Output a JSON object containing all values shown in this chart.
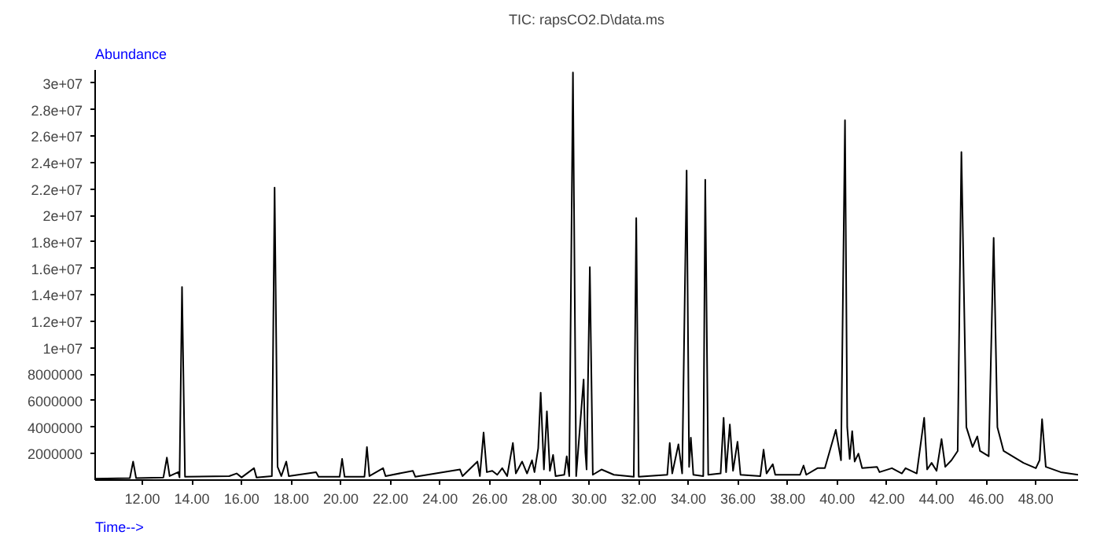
{
  "chart_data": {
    "type": "line",
    "title": "TIC: rapsCO2.D\\data.ms",
    "ylabel": "Abundance",
    "xlabel": "Time-->",
    "xlim": [
      10.1,
      49.7
    ],
    "ylim": [
      0,
      31000000
    ],
    "xticks": [
      {
        "value": 12,
        "label": "12.00"
      },
      {
        "value": 14,
        "label": "14.00"
      },
      {
        "value": 16,
        "label": "16.00"
      },
      {
        "value": 18,
        "label": "18.00"
      },
      {
        "value": 20,
        "label": "20.00"
      },
      {
        "value": 22,
        "label": "22.00"
      },
      {
        "value": 24,
        "label": "24.00"
      },
      {
        "value": 26,
        "label": "26.00"
      },
      {
        "value": 28,
        "label": "28.00"
      },
      {
        "value": 30,
        "label": "30.00"
      },
      {
        "value": 32,
        "label": "32.00"
      },
      {
        "value": 34,
        "label": "34.00"
      },
      {
        "value": 36,
        "label": "36.00"
      },
      {
        "value": 38,
        "label": "38.00"
      },
      {
        "value": 40,
        "label": "40.00"
      },
      {
        "value": 42,
        "label": "42.00"
      },
      {
        "value": 44,
        "label": "44.00"
      },
      {
        "value": 46,
        "label": "46.00"
      },
      {
        "value": 48,
        "label": "48.00"
      }
    ],
    "yticks": [
      2000000,
      4000000,
      6000000,
      8000000,
      {
        "value": 10000000,
        "label": "1e+07"
      },
      {
        "value": 12000000,
        "label": "1.2e+07"
      },
      {
        "value": 14000000,
        "label": "1.4e+07"
      },
      {
        "value": 16000000,
        "label": "1.6e+07"
      },
      {
        "value": 18000000,
        "label": "1.8e+07"
      },
      {
        "value": 20000000,
        "label": "2e+07"
      },
      {
        "value": 22000000,
        "label": "2.2e+07"
      },
      {
        "value": 24000000,
        "label": "2.4e+07"
      },
      {
        "value": 26000000,
        "label": "2.6e+07"
      },
      {
        "value": 28000000,
        "label": "2.8e+07"
      },
      {
        "value": 30000000,
        "label": "3e+07"
      }
    ],
    "grid": false,
    "marker": "none",
    "line_style": "solid",
    "series": [
      {
        "color": "#000000",
        "x": [
          10.1,
          11.5,
          11.63,
          11.75,
          12.85,
          12.99,
          13.1,
          13.45,
          13.5,
          13.6,
          13.72,
          15.5,
          15.8,
          16.0,
          16.5,
          16.6,
          17.22,
          17.33,
          17.45,
          17.6,
          17.8,
          17.9,
          19.0,
          19.1,
          19.95,
          20.05,
          20.15,
          20.95,
          21.05,
          21.15,
          21.7,
          21.8,
          22.9,
          23.0,
          24.8,
          24.9,
          25.5,
          25.6,
          25.75,
          25.88,
          26.1,
          26.3,
          26.5,
          26.7,
          26.93,
          27.05,
          27.3,
          27.5,
          27.7,
          27.8,
          27.95,
          28.05,
          28.18,
          28.3,
          28.42,
          28.55,
          28.65,
          29.0,
          29.1,
          29.2,
          29.35,
          29.48,
          29.78,
          29.85,
          29.9,
          30.03,
          30.15,
          30.5,
          31.0,
          31.8,
          31.9,
          32.0,
          33.15,
          33.25,
          33.35,
          33.6,
          33.75,
          33.93,
          34.03,
          34.1,
          34.2,
          34.6,
          34.68,
          34.8,
          35.3,
          35.42,
          35.52,
          35.67,
          35.8,
          35.98,
          36.1,
          36.9,
          37.03,
          37.15,
          37.4,
          37.5,
          38.5,
          38.64,
          38.75,
          39.2,
          39.5,
          39.94,
          40.15,
          40.31,
          40.4,
          40.5,
          40.6,
          40.7,
          40.85,
          41.0,
          41.6,
          41.7,
          42.2,
          42.6,
          42.75,
          43.2,
          43.5,
          43.62,
          43.8,
          44.0,
          44.2,
          44.35,
          44.6,
          44.85,
          45.0,
          45.2,
          45.45,
          45.64,
          45.75,
          46.1,
          46.3,
          46.45,
          46.7,
          47.5,
          48.0,
          48.15,
          48.25,
          48.4,
          49.0,
          49.7
        ],
        "values": [
          100000,
          150000,
          1400000,
          150000,
          200000,
          1700000,
          300000,
          600000,
          200000,
          14600000,
          250000,
          300000,
          500000,
          200000,
          900000,
          200000,
          300000,
          22100000,
          1000000,
          300000,
          1400000,
          300000,
          600000,
          250000,
          250000,
          1600000,
          250000,
          250000,
          2500000,
          300000,
          900000,
          300000,
          700000,
          250000,
          800000,
          300000,
          1400000,
          300000,
          3600000,
          600000,
          700000,
          400000,
          900000,
          300000,
          2800000,
          500000,
          1400000,
          500000,
          1500000,
          600000,
          2400000,
          6600000,
          800000,
          5200000,
          700000,
          1900000,
          300000,
          400000,
          1800000,
          300000,
          30800000,
          300000,
          7600000,
          2100000,
          800000,
          16100000,
          400000,
          800000,
          400000,
          250000,
          19800000,
          250000,
          400000,
          2800000,
          500000,
          2700000,
          500000,
          23400000,
          1000000,
          3200000,
          400000,
          300000,
          22700000,
          400000,
          500000,
          4700000,
          600000,
          4200000,
          700000,
          2900000,
          400000,
          300000,
          2300000,
          500000,
          1200000,
          400000,
          400000,
          1100000,
          400000,
          900000,
          900000,
          3800000,
          1500000,
          27200000,
          4000000,
          1600000,
          3700000,
          1400000,
          2000000,
          900000,
          1000000,
          600000,
          900000,
          500000,
          900000,
          500000,
          4700000,
          800000,
          1300000,
          700000,
          3100000,
          1000000,
          1500000,
          2200000,
          24800000,
          4000000,
          2500000,
          3300000,
          2200000,
          1800000,
          18300000,
          4000000,
          2200000,
          1300000,
          900000,
          1500000,
          4600000,
          1000000,
          600000,
          400000
        ]
      }
    ]
  }
}
